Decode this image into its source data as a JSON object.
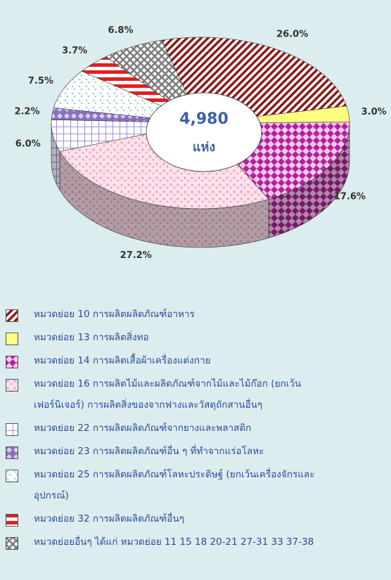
{
  "chart_data": {
    "type": "pie",
    "categories": [
      "หมวดย่อย 10 การผลิตผลิตภัณฑ์อาหาร",
      "หมวดย่อย 13 การผลิตสิ่งทอ",
      "หมวดย่อย 14 การผลิตเสื้อผ้าเครื่องแต่งกาย",
      "หมวดย่อย 16 การผลิตไม้และผลิตภัณฑ์จากไม้และไม้ก๊อก (ยกเว้นเฟอร์นิเจอร์) การผลิตสิ่งของจากฟางและวัสดุถักสานอื่นๆ",
      "หมวดย่อย 22 การผลิตผลิตภัณฑ์จากยางและพลาสติก",
      "หมวดย่อย 23 การผลิตผลิตภัณฑ์อื่น ๆ ที่ทำจากแร่อโลหะ",
      "หมวดย่อย 25 การผลิตผลิตภัณฑ์โลหะประดิษฐ์ (ยกเว้นเครื่องจักรและอุปกรณ์)",
      "หมวดย่อย 32 การผลิตผลิตภัณฑ์อื่นๆ",
      "หมวดย่อยอื่นๆ ได้แก่ หมวดย่อย 11 15 18 20-21 27-31 33 37-38"
    ],
    "values": [
      26.0,
      3.0,
      17.6,
      27.2,
      6.0,
      2.2,
      7.5,
      3.7,
      6.8
    ],
    "value_labels": [
      "26.0%",
      "3.0%",
      "17.6%",
      "27.2%",
      "6.0%",
      "2.2%",
      "7.5%",
      "3.7%",
      "6.8%"
    ],
    "colors": [
      "#8b1a1a",
      "#ffff80",
      "#b0229a",
      "#f2a6c2",
      "#9c92d8",
      "#8a70c0",
      "#7fc2c2",
      "#e02020",
      "#7a7a7a"
    ],
    "center_label": "4,980",
    "center_unit": "แห่ง"
  }
}
